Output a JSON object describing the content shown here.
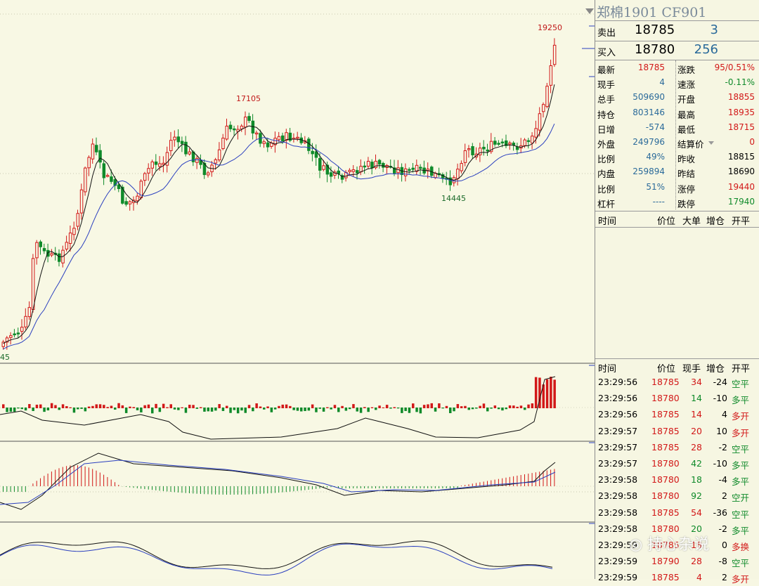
{
  "colors": {
    "up": "#d21818",
    "down": "#0f8a2a",
    "ma_short": "#111111",
    "ma_long": "#2a3fbf",
    "panel_bg": "#f6f6e2"
  },
  "price_labels": {
    "high_label": "19250",
    "peak_label": "17105",
    "trough_label": "14445",
    "left_label": "45"
  },
  "panel": {
    "title": "郑棉1901  CF901",
    "sell": {
      "label": "卖出",
      "price": "18785",
      "volume": "3"
    },
    "buy": {
      "label": "买入",
      "price": "18780",
      "volume": "256"
    },
    "left_stats": [
      {
        "k": "最新",
        "v": "18785",
        "c": "red"
      },
      {
        "k": "现手",
        "v": "4",
        "c": "blue"
      },
      {
        "k": "总手",
        "v": "509690",
        "c": "blue"
      },
      {
        "k": "持仓",
        "v": "803146",
        "c": "blue"
      },
      {
        "k": "日增",
        "v": "-574",
        "c": "blue"
      },
      {
        "k": "外盘",
        "v": "249796",
        "c": "blue"
      },
      {
        "k": "比例",
        "v": "49%",
        "c": "blue"
      },
      {
        "k": "内盘",
        "v": "259894",
        "c": "blue"
      },
      {
        "k": "比例",
        "v": "51%",
        "c": "blue"
      },
      {
        "k": "杠杆",
        "v": "----",
        "c": "blue"
      }
    ],
    "right_stats": [
      {
        "k": "涨跌",
        "v": "95/0.51%",
        "c": "red"
      },
      {
        "k": "速涨",
        "v": "-0.11%",
        "c": "green"
      },
      {
        "k": "开盘",
        "v": "18855",
        "c": "red"
      },
      {
        "k": "最高",
        "v": "18935",
        "c": "red"
      },
      {
        "k": "最低",
        "v": "18715",
        "c": "red"
      },
      {
        "k": "结算价",
        "v": "0",
        "c": "red"
      },
      {
        "k": "昨收",
        "v": "18815",
        "c": "blk"
      },
      {
        "k": "昨结",
        "v": "18690",
        "c": "blk"
      },
      {
        "k": "涨停",
        "v": "19440",
        "c": "red"
      },
      {
        "k": "跌停",
        "v": "17940",
        "c": "green"
      }
    ],
    "big_order_header": {
      "time": "时间",
      "price": "价位",
      "big": "大单",
      "oi": "增仓",
      "type": "开平"
    },
    "tick_header": {
      "time": "时间",
      "price": "价位",
      "vol": "现手",
      "oi": "增仓",
      "type": "开平"
    },
    "ticks": [
      {
        "time": "23:29:56",
        "price": "18785",
        "vol": "34",
        "oi": "-24",
        "type": "空平",
        "vc": "red",
        "tc": "green"
      },
      {
        "time": "23:29:56",
        "price": "18780",
        "vol": "14",
        "oi": "-10",
        "type": "多平",
        "vc": "green",
        "tc": "green"
      },
      {
        "time": "23:29:56",
        "price": "18785",
        "vol": "14",
        "oi": "4",
        "type": "多开",
        "vc": "red",
        "tc": "red"
      },
      {
        "time": "23:29:57",
        "price": "18785",
        "vol": "20",
        "oi": "10",
        "type": "多开",
        "vc": "red",
        "tc": "red"
      },
      {
        "time": "23:29:57",
        "price": "18785",
        "vol": "28",
        "oi": "-2",
        "type": "空平",
        "vc": "red",
        "tc": "green"
      },
      {
        "time": "23:29:57",
        "price": "18780",
        "vol": "42",
        "oi": "-10",
        "type": "多平",
        "vc": "green",
        "tc": "green"
      },
      {
        "time": "23:29:58",
        "price": "18780",
        "vol": "18",
        "oi": "-4",
        "type": "多平",
        "vc": "green",
        "tc": "green"
      },
      {
        "time": "23:29:58",
        "price": "18780",
        "vol": "92",
        "oi": "2",
        "type": "空开",
        "vc": "green",
        "tc": "green"
      },
      {
        "time": "23:29:58",
        "price": "18785",
        "vol": "54",
        "oi": "-36",
        "type": "空平",
        "vc": "red",
        "tc": "green"
      },
      {
        "time": "23:29:58",
        "price": "18780",
        "vol": "20",
        "oi": "-2",
        "type": "多平",
        "vc": "green",
        "tc": "green"
      },
      {
        "time": "23:29:59",
        "price": "18785",
        "vol": "18",
        "oi": "0",
        "type": "多换",
        "vc": "red",
        "tc": "red"
      },
      {
        "time": "23:29:59",
        "price": "18790",
        "vol": "28",
        "oi": "-8",
        "type": "空平",
        "vc": "red",
        "tc": "green"
      },
      {
        "time": "23:29:59",
        "price": "18785",
        "vol": "4",
        "oi": "2",
        "type": "多开",
        "vc": "red",
        "tc": "red"
      }
    ]
  },
  "watermark": "持心杂说"
}
